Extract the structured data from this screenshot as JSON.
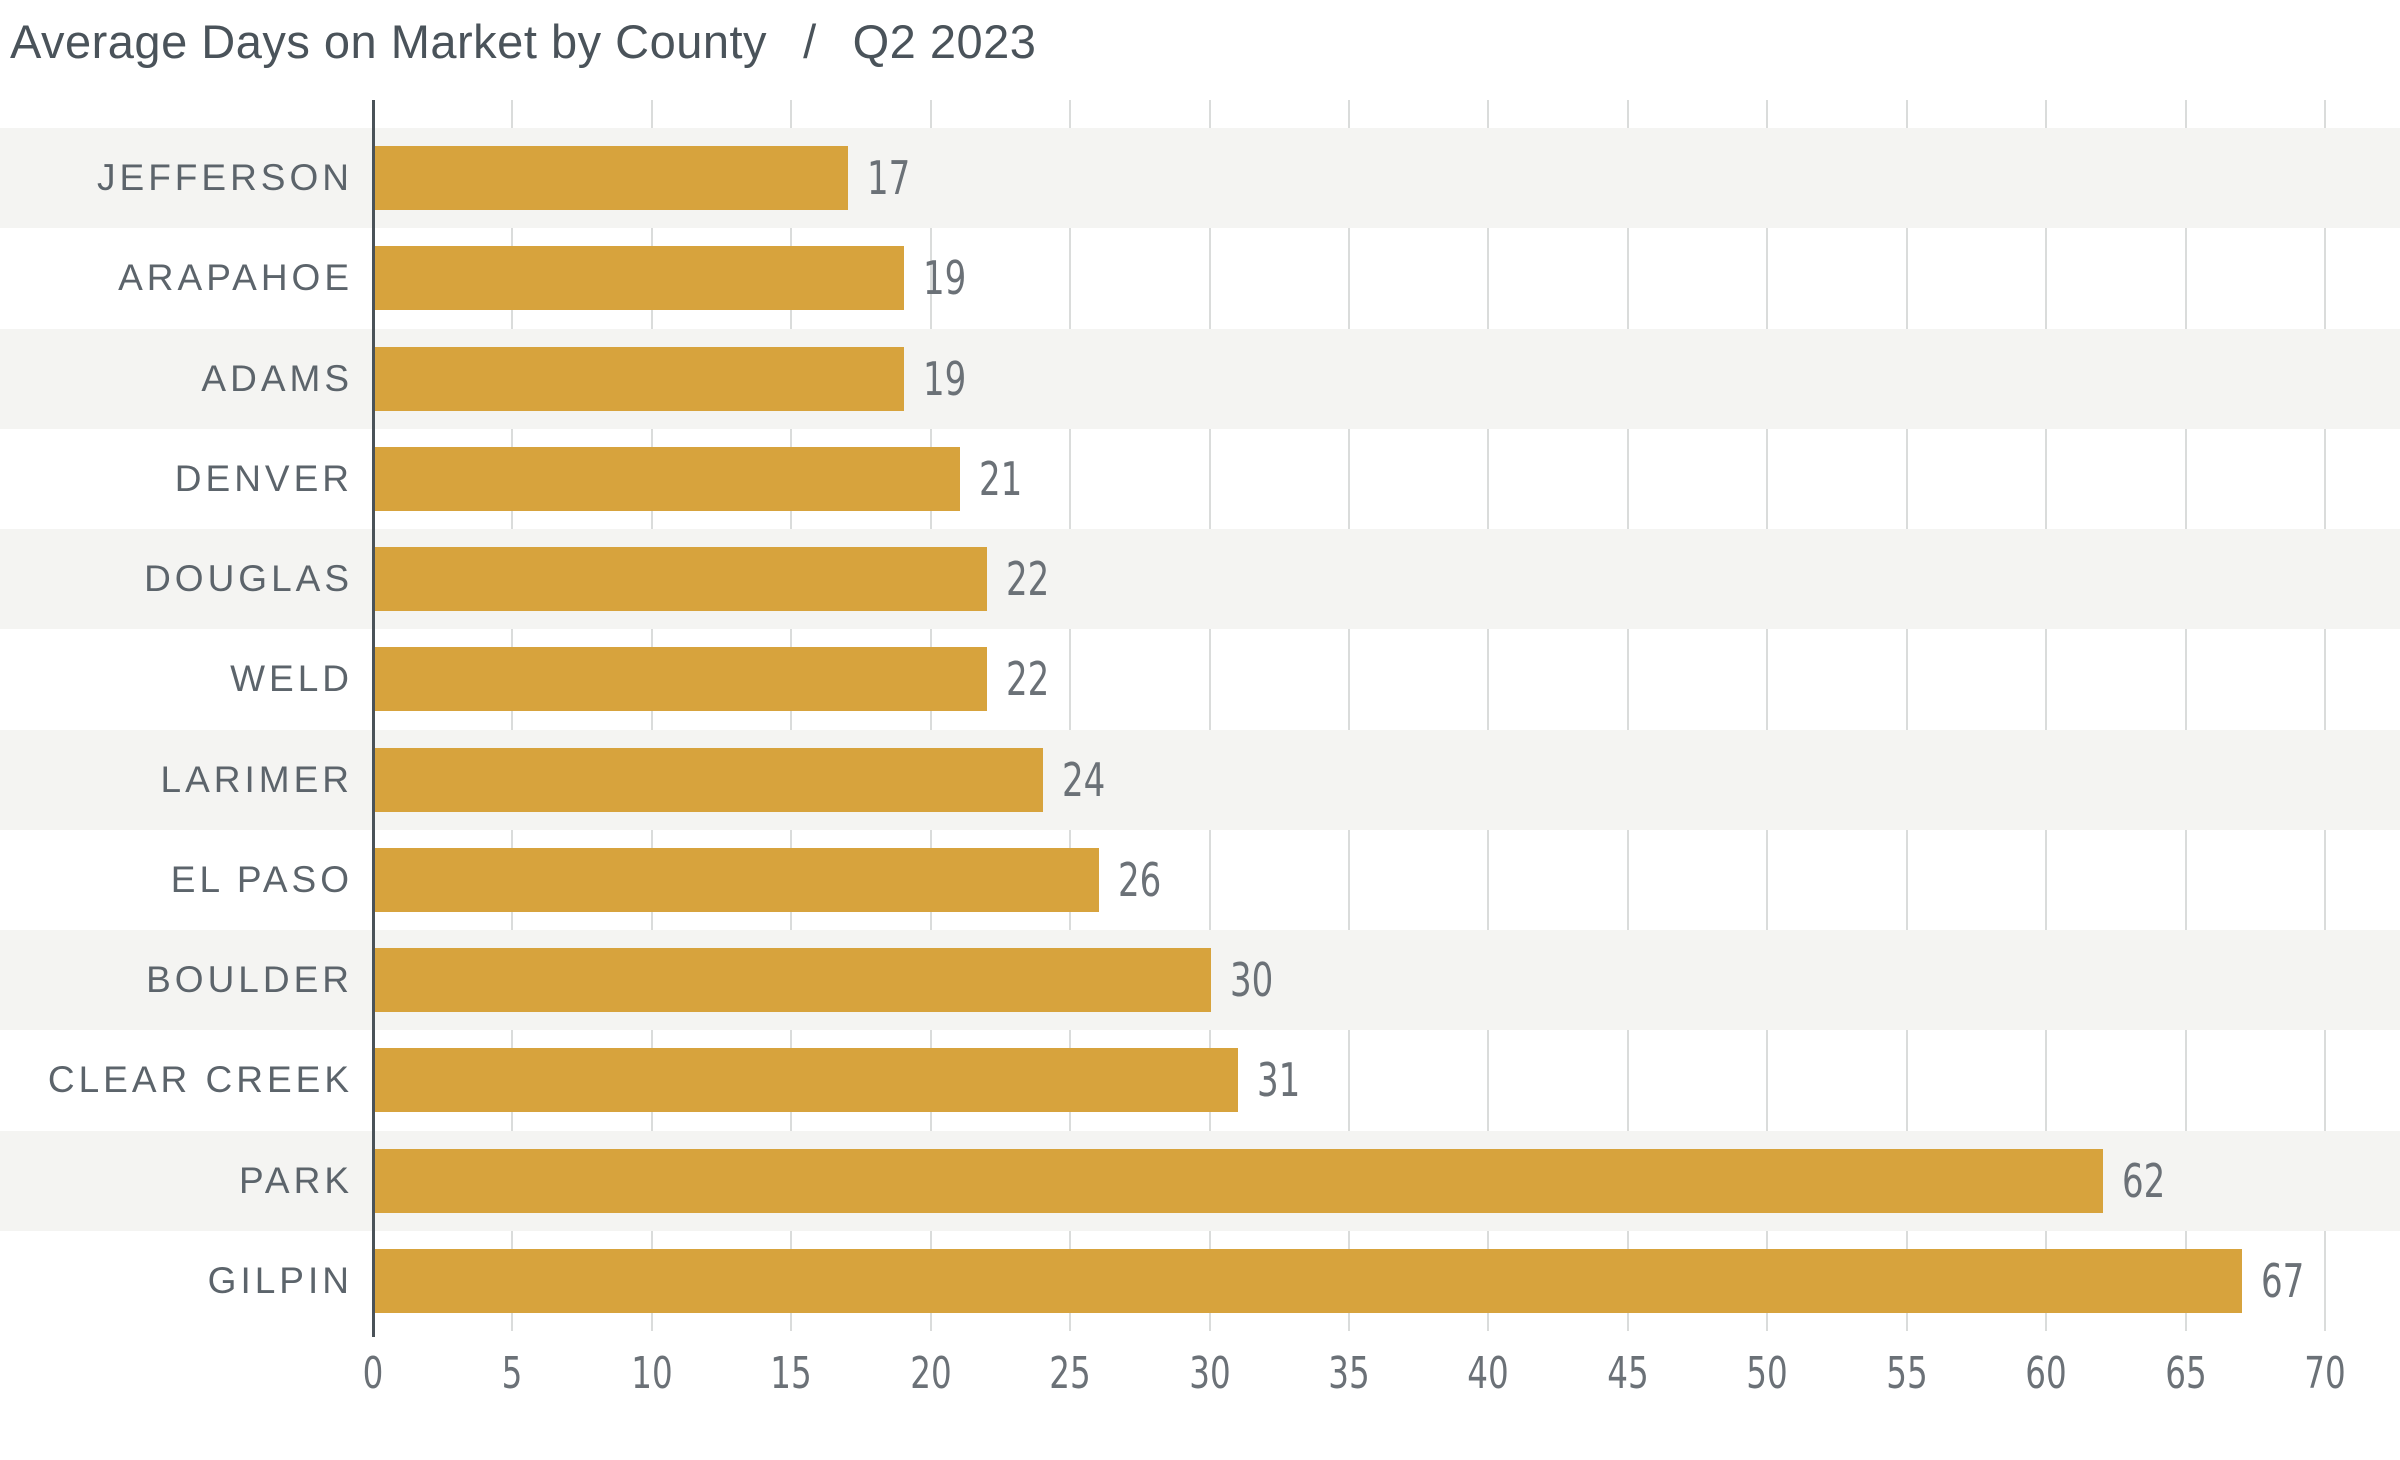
{
  "title": {
    "main": "Average Days on Market by County",
    "separator": "/",
    "period": "Q2 2023"
  },
  "chart_data": {
    "type": "bar",
    "orientation": "horizontal",
    "title": "Average Days on Market by County / Q2 2023",
    "categories": [
      "JEFFERSON",
      "ARAPAHOE",
      "ADAMS",
      "DENVER",
      "DOUGLAS",
      "WELD",
      "LARIMER",
      "EL PASO",
      "BOULDER",
      "CLEAR CREEK",
      "PARK",
      "GILPIN"
    ],
    "values": [
      17,
      19,
      19,
      21,
      22,
      22,
      24,
      26,
      30,
      31,
      62,
      67
    ],
    "value_labels": [
      "17",
      "19",
      "19",
      "21",
      "22",
      "22",
      "24",
      "26",
      "30",
      "31",
      "62",
      "67"
    ],
    "xlabel": "",
    "ylabel": "",
    "xlim": [
      0,
      70
    ],
    "xticks": [
      0,
      5,
      10,
      15,
      20,
      25,
      30,
      35,
      40,
      45,
      50,
      55,
      60,
      65,
      70
    ],
    "grid": "vertical",
    "legend": "none",
    "band_rows": "alternating starting with first row shaded"
  },
  "colors": {
    "background": "#FFFFFF",
    "bar": "#D7A33D",
    "row_band": "#F4F4F2",
    "gridline": "#DADCDB",
    "axis_line": "#4A5258",
    "title_text": "#4A535A",
    "county_label_text": "#5C646B",
    "value_text": "#6B7177"
  }
}
